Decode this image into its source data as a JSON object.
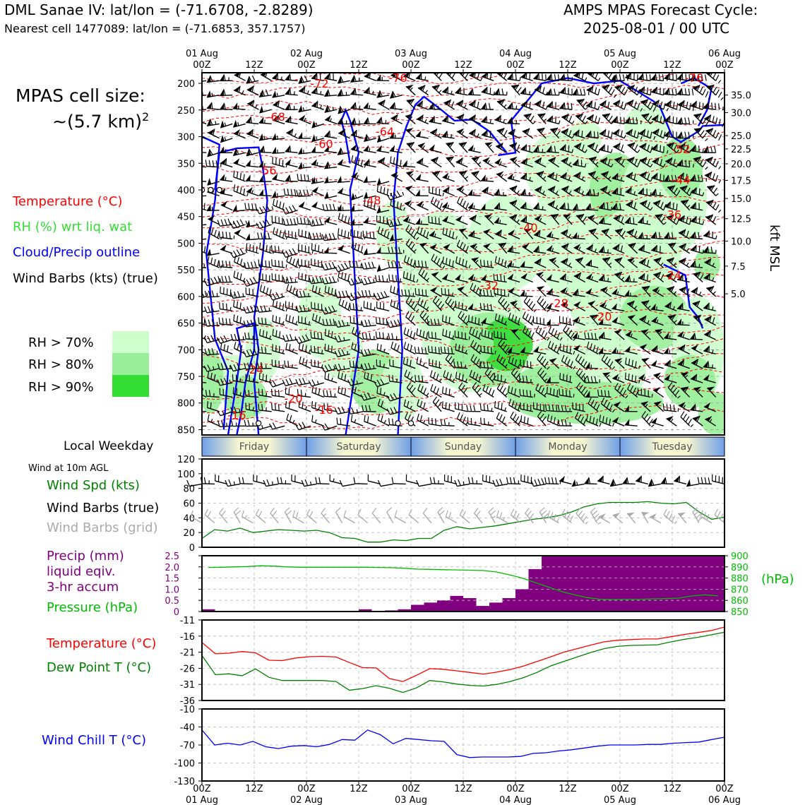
{
  "header": {
    "station": "DML Sanae IV: lat/lon = (-71.6708, -2.8289)",
    "nearest_cell": "Nearest cell 1477089: lat/lon = (-71.6853, 357.1757)",
    "forecast_title": "AMPS MPAS Forecast Cycle:",
    "forecast_cycle": "2025-08-01 / 00 UTC"
  },
  "cell_size": {
    "label": "MPAS cell size:",
    "value": "~(5.7 km)",
    "exponent": "2"
  },
  "legend": {
    "temperature": "Temperature (°C)",
    "rh": "RH (%) wrt liq. wat",
    "cloud": "Cloud/Precip outline",
    "barbs": "Wind Barbs (kts) (true)",
    "rh70": "RH > 70%",
    "rh80": "RH > 80%",
    "rh90": "RH > 90%"
  },
  "colors": {
    "temperature": "#ff0000",
    "rh_label": "#33dd33",
    "cloud": "#0000ff",
    "rh70": "#ccffcc",
    "rh80": "#99ee99",
    "rh90": "#33dd33",
    "wind_speed": "#008000",
    "grid_barbs": "#aaaaaa",
    "precip": "#800080",
    "pressure": "#00bb00",
    "dewpoint": "#008000",
    "windchill": "#0000ff"
  },
  "time_axis": {
    "top_ticks": [
      {
        "day": "01 Aug",
        "hour": "00Z"
      },
      {
        "day": "",
        "hour": "12Z"
      },
      {
        "day": "02 Aug",
        "hour": "00Z"
      },
      {
        "day": "",
        "hour": "12Z"
      },
      {
        "day": "03 Aug",
        "hour": "00Z"
      },
      {
        "day": "",
        "hour": "12Z"
      },
      {
        "day": "04 Aug",
        "hour": "00Z"
      },
      {
        "day": "",
        "hour": "12Z"
      },
      {
        "day": "05 Aug",
        "hour": "00Z"
      },
      {
        "day": "",
        "hour": "12Z"
      },
      {
        "day": "06 Aug",
        "hour": "00Z"
      }
    ],
    "bottom_days": [
      "01 Aug",
      "",
      "02 Aug",
      "",
      "03 Aug",
      "",
      "04 Aug",
      "",
      "05 Aug",
      "",
      "06 Aug"
    ]
  },
  "weekday": {
    "label": "Local Weekday",
    "days": [
      "Friday",
      "Saturday",
      "Sunday",
      "Monday",
      "Tuesday"
    ]
  },
  "chart_data": [
    {
      "type": "heatmap",
      "ylabel_right": "kft MSL",
      "x_range_hours": [
        0,
        120
      ],
      "y_ticks_hPa": [
        "200",
        "250",
        "300",
        "350",
        "400",
        "450",
        "500",
        "550",
        "600",
        "650",
        "700",
        "750",
        "800",
        "850"
      ],
      "ylim_hPa": [
        180,
        860
      ],
      "y_right_ticks_kft": [
        {
          "hPa": 222,
          "label": "35.0"
        },
        {
          "hPa": 255,
          "label": "30.0"
        },
        {
          "hPa": 298,
          "label": "25.0"
        },
        {
          "hPa": 323,
          "label": "22.5"
        },
        {
          "hPa": 351,
          "label": "20.0"
        },
        {
          "hPa": 382,
          "label": "17.5"
        },
        {
          "hPa": 416,
          "label": "15.0"
        },
        {
          "hPa": 454,
          "label": "12.5"
        },
        {
          "hPa": 496,
          "label": "10.0"
        },
        {
          "hPa": 543,
          "label": "7.5"
        },
        {
          "hPa": 595,
          "label": "5.0"
        }
      ],
      "temperature_contour_labels": [
        {
          "t": 27,
          "p": 200,
          "label": "-72"
        },
        {
          "t": 45,
          "p": 189,
          "label": "-76"
        },
        {
          "t": 113,
          "p": 189,
          "label": "-76"
        },
        {
          "t": 17,
          "p": 262,
          "label": "-68"
        },
        {
          "t": 42,
          "p": 290,
          "label": "-64"
        },
        {
          "t": 28,
          "p": 313,
          "label": "-60"
        },
        {
          "t": 15,
          "p": 363,
          "label": "-56"
        },
        {
          "t": 110,
          "p": 323,
          "label": "-52"
        },
        {
          "t": 39,
          "p": 419,
          "label": "-48"
        },
        {
          "t": 110,
          "p": 381,
          "label": "-44"
        },
        {
          "t": 75,
          "p": 470,
          "label": "-40"
        },
        {
          "t": 108,
          "p": 446,
          "label": "-36"
        },
        {
          "t": 66,
          "p": 579,
          "label": "-32"
        },
        {
          "t": 108,
          "p": 560,
          "label": "-24"
        },
        {
          "t": 82,
          "p": 612,
          "label": "-28"
        },
        {
          "t": 92,
          "p": 637,
          "label": "-20"
        },
        {
          "t": 12,
          "p": 737,
          "label": "-24"
        },
        {
          "t": 21,
          "p": 791,
          "label": "-20"
        },
        {
          "t": 28,
          "p": 812,
          "label": "-16"
        },
        {
          "t": 8,
          "p": 822,
          "label": "-16"
        }
      ]
    },
    {
      "type": "line",
      "title": "Wind at 10m AGL",
      "series": [
        {
          "name": "Wind Spd (kts)",
          "values": [
            12,
            24,
            22,
            26,
            20,
            22,
            24,
            23,
            22,
            23,
            20,
            13,
            12,
            7,
            7,
            10,
            9,
            12,
            12,
            23,
            28,
            25,
            27,
            29,
            32,
            35,
            38,
            40,
            43,
            48,
            55,
            59,
            61,
            61,
            61,
            62,
            60,
            59,
            61,
            48,
            38,
            41
          ]
        }
      ],
      "barb_labels": [
        "Wind Barbs (true)",
        "Wind Barbs (grid)"
      ],
      "ylim": [
        0,
        120
      ],
      "y_ticks": [
        "0",
        "20",
        "40",
        "60",
        "80",
        "100",
        "120"
      ],
      "barb_line_true": 86,
      "barb_line_grid": 33
    },
    {
      "type": "bar",
      "series": [
        {
          "name": "Precip (mm) liquid eqiv. 3-hr accum",
          "values": [
            0.1,
            0,
            0,
            0,
            0,
            0,
            0,
            0,
            0,
            0,
            0,
            0,
            0.1,
            0,
            0.05,
            0.1,
            0.3,
            0.4,
            0.5,
            0.7,
            0.6,
            0.25,
            0.4,
            0.6,
            1.0,
            1.9,
            2.5,
            2.5,
            2.5,
            2.5,
            2.5,
            2.5,
            2.5,
            2.5,
            2.5,
            2.5,
            2.5,
            2.5,
            2.5,
            2.5
          ]
        },
        {
          "name": "Pressure (hPa)",
          "values": [
            889.5,
            889.7,
            890,
            890.3,
            891,
            890.7,
            890,
            889.7,
            889.7,
            889.7,
            889.7,
            889.7,
            889.7,
            889.5,
            889.3,
            888.8,
            888,
            887.8,
            887.5,
            887.3,
            887,
            886.8,
            885.5,
            883,
            880,
            876,
            872,
            868,
            865,
            862.5,
            861,
            860.7,
            861,
            861,
            861.3,
            861.6,
            862,
            864,
            865,
            864
          ]
        }
      ],
      "left_label_lines": [
        "Precip (mm)",
        "liquid eqiv.",
        "3-hr accum"
      ],
      "right_label": "Pressure (hPa)",
      "right_unit": "(hPa)",
      "ylim_precip": [
        0,
        2.5
      ],
      "ylim_pressure": [
        850,
        900
      ],
      "y_ticks_left": [
        "0",
        "0.5",
        "1.0",
        "1.5",
        "2.0",
        "2.5"
      ],
      "y_ticks_right": [
        "850",
        "860",
        "870",
        "880",
        "890",
        "900"
      ]
    },
    {
      "type": "line",
      "series": [
        {
          "name": "Temperature (°C)",
          "values": [
            -18,
            -21.5,
            -21.3,
            -20.8,
            -21.2,
            -23.5,
            -23.6,
            -22.8,
            -22.4,
            -22.3,
            -22.5,
            -24.2,
            -25.8,
            -25.9,
            -29.2,
            -30.1,
            -28.2,
            -26.1,
            -26.3,
            -26.8,
            -27.3,
            -27.8,
            -27.2,
            -26.4,
            -25.3,
            -23.9,
            -22.5,
            -21.0,
            -19.9,
            -18.8,
            -17.8,
            -17.3,
            -17.1,
            -16.9,
            -16.9,
            -16.2,
            -15.5,
            -14.9,
            -14.3,
            -13.2
          ]
        },
        {
          "name": "Dew Point T (°C)",
          "values": [
            -22,
            -28,
            -27.7,
            -28.3,
            -26.2,
            -28.8,
            -29.8,
            -29.8,
            -29.8,
            -29.8,
            -30.1,
            -32.8,
            -32.3,
            -31.4,
            -32.2,
            -33.5,
            -32.1,
            -29.8,
            -30.2,
            -30.9,
            -31.3,
            -31.5,
            -31,
            -30.1,
            -28.9,
            -27.3,
            -25.3,
            -23.9,
            -22.5,
            -21.1,
            -19.9,
            -19.2,
            -18.9,
            -18.8,
            -18.7,
            -17.8,
            -17,
            -16.4,
            -15.6,
            -14.8
          ]
        }
      ],
      "ylim": [
        -36,
        -11
      ],
      "y_ticks": [
        "-11",
        "-16",
        "-21",
        "-26",
        "-31",
        "-36"
      ]
    },
    {
      "type": "line",
      "series": [
        {
          "name": "Wind Chill T (°C)",
          "values": [
            -45,
            -70,
            -67,
            -70,
            -64,
            -73,
            -76,
            -72,
            -71,
            -73,
            -69,
            -61,
            -62,
            -45,
            -53,
            -68,
            -59,
            -61,
            -63,
            -64,
            -86,
            -91,
            -90,
            -90,
            -90,
            -89,
            -84,
            -83,
            -80,
            -78,
            -75,
            -72,
            -70,
            -70,
            -70,
            -69,
            -69,
            -67,
            -66,
            -65,
            -61,
            -57
          ]
        }
      ],
      "ylim": [
        -130,
        -10
      ],
      "y_ticks": [
        "-130",
        "-100",
        "-70",
        "-40",
        "-10"
      ]
    }
  ]
}
